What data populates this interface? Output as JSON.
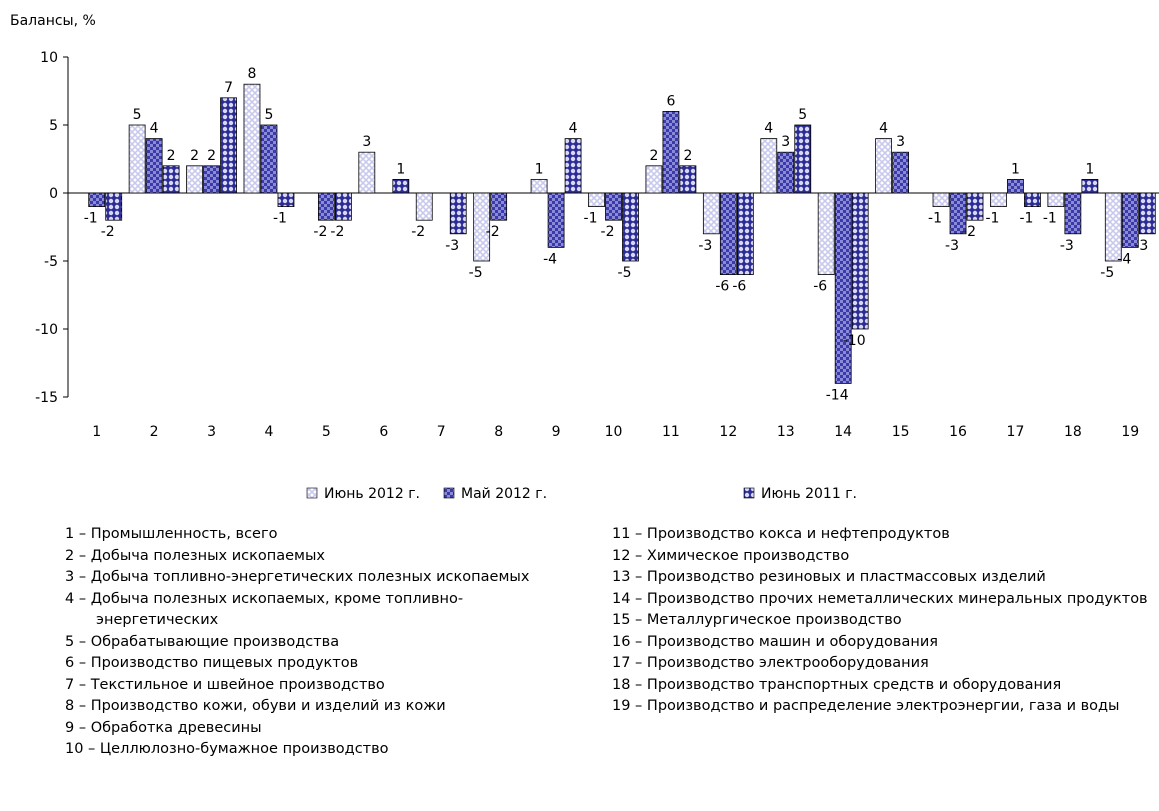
{
  "chart_data": {
    "type": "bar",
    "y_label": "Балансы, %",
    "categories": [
      "1",
      "2",
      "3",
      "4",
      "5",
      "6",
      "7",
      "8",
      "9",
      "10",
      "11",
      "12",
      "13",
      "14",
      "15",
      "16",
      "17",
      "18",
      "19"
    ],
    "series": [
      {
        "name": "Июнь 2012 г.",
        "color": "#c9c9ee",
        "values": [
          0,
          5,
          2,
          8,
          0,
          3,
          -2,
          -5,
          1,
          -1,
          2,
          -3,
          4,
          -6,
          4,
          -1,
          -1,
          -1,
          -5
        ]
      },
      {
        "name": "Май 2012 г.",
        "color": "#3a3aa8",
        "values": [
          -1,
          4,
          2,
          5,
          -2,
          0,
          0,
          -2,
          -4,
          -2,
          6,
          -6,
          3,
          -14,
          3,
          -3,
          1,
          -3,
          -4
        ]
      },
      {
        "name": "Июнь 2011 г.",
        "color": "#2c2c96",
        "values": [
          -2,
          2,
          7,
          -1,
          -2,
          1,
          -3,
          0,
          4,
          -5,
          2,
          -6,
          5,
          -10,
          0,
          -2,
          -1,
          1,
          -3
        ]
      }
    ],
    "ylim": [
      -15,
      10
    ],
    "yticks": [
      -15,
      -10,
      -5,
      0,
      5,
      10
    ],
    "notes": [
      "1 – Промышленность, всего",
      "2 – Добыча полезных ископаемых",
      "3 – Добыча топливно-энергетических полезных ископаемых",
      "4 – Добыча полезных ископаемых, кроме топливно-энергетических",
      "5 – Обрабатывающие производства",
      "6 – Производство пищевых продуктов",
      "7 – Текстильное и швейное производство",
      "8 – Производство кожи, обуви и изделий из кожи",
      "9 – Обработка древесины",
      "10 – Целлюлозно-бумажное производство",
      "11 – Производство кокса и нефтепродуктов",
      "12 – Химическое производство",
      "13 – Производство резиновых и пластмассовых изделий",
      "14 – Производство прочих неметаллических минеральных продуктов",
      "15 – Металлургическое производство",
      "16 – Производство машин и оборудования",
      "17 – Производство электрооборудования",
      "18 – Производство транспортных средств и оборудования",
      "19 – Производство и распределение электроэнергии, газа и воды"
    ]
  }
}
